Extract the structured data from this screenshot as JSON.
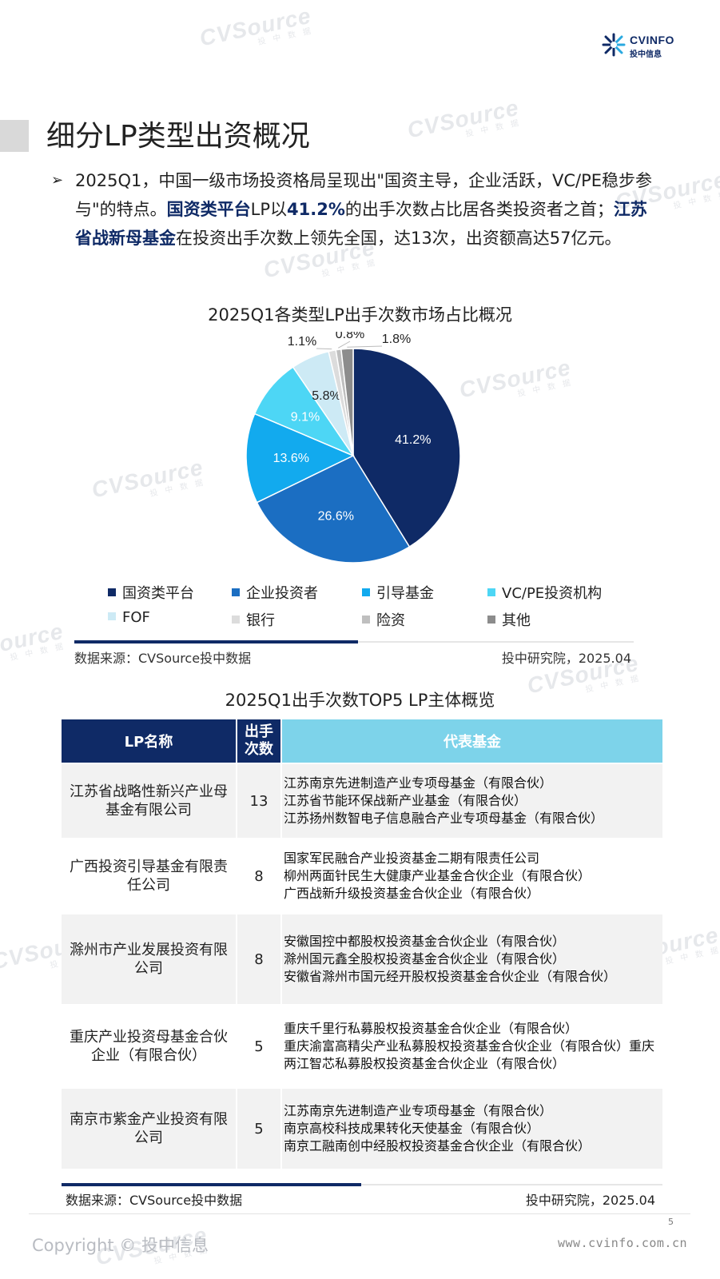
{
  "logo": {
    "text1": "CVINFO",
    "text2": "投中信息"
  },
  "watermark": {
    "brand": "CVSource",
    "sub": "投 中 数 据"
  },
  "page_title": "细分LP类型出资概况",
  "intro": {
    "bullet": "➢",
    "p1": "2025Q1，中国一级市场投资格局呈现出\"国资主导，企业活跃，VC/PE稳步参与\"的特点。",
    "hl1": "国资类平台",
    "p2": "LP以",
    "hl2": "41.2%",
    "p3": "的出手次数占比居各类投资者之首；",
    "hl3": "江苏省战新母基金",
    "p4": "在投资出手次数上领先全国，达13次，出资额高达57亿元。"
  },
  "chart_data": {
    "type": "pie",
    "title": "2025Q1各类型LP出手次数市场占比概况",
    "unit": "%",
    "slices": [
      {
        "label": "国资类平台",
        "value": 41.2,
        "display": "41.2%",
        "color": "#0f2a66"
      },
      {
        "label": "企业投资者",
        "value": 26.6,
        "display": "26.6%",
        "color": "#1b6ec2"
      },
      {
        "label": "引导基金",
        "value": 13.6,
        "display": "13.6%",
        "color": "#12aaee"
      },
      {
        "label": "VC/PE投资机构",
        "value": 9.1,
        "display": "9.1%",
        "color": "#4dd6f5"
      },
      {
        "label": "FOF",
        "value": 5.8,
        "display": "5.8%",
        "color": "#cdeaf5"
      },
      {
        "label": "银行",
        "value": 1.1,
        "display": "1.1%",
        "color": "#dcdcdc"
      },
      {
        "label": "险资",
        "value": 0.8,
        "display": "0.8%",
        "color": "#bfbfbf"
      },
      {
        "label": "其他",
        "value": 1.8,
        "display": "1.8%",
        "color": "#8c8c8c"
      }
    ],
    "legend_placement": "bottom"
  },
  "source1": {
    "left": "数据来源：CVSource投中数据",
    "right": "投中研究院，2025.04"
  },
  "table": {
    "title": "2025Q1出手次数TOP5 LP主体概览",
    "headers": {
      "name": "LP名称",
      "count_line1": "出手",
      "count_line2": "次数",
      "funds": "代表基金"
    },
    "rows": [
      {
        "name": "江苏省战略性新兴产业母基金有限公司",
        "count": "13",
        "funds": [
          "江苏南京先进制造产业专项母基金（有限合伙）",
          "江苏省节能环保战新产业基金（有限合伙）",
          "江苏扬州数智电子信息融合产业专项母基金（有限合伙）"
        ]
      },
      {
        "name": "广西投资引导基金有限责任公司",
        "count": "8",
        "funds": [
          "国家军民融合产业投资基金二期有限责任公司",
          "柳州两面针民生大健康产业基金合伙企业（有限合伙）",
          "广西战新升级投资基金合伙企业（有限合伙）"
        ]
      },
      {
        "name": "滁州市产业发展投资有限公司",
        "count": "8",
        "funds": [
          "安徽国控中都股权投资基金合伙企业（有限合伙）",
          "滁州国元鑫全股权投资基金合伙企业（有限合伙）",
          "安徽省滁州市国元经开股权投资基金合伙企业（有限合伙）"
        ]
      },
      {
        "name": "重庆产业投资母基金合伙企业（有限合伙）",
        "count": "5",
        "funds": [
          "重庆千里行私募股权投资基金合伙企业（有限合伙）",
          "重庆渝富高精尖产业私募股权投资基金合伙企业（有限合伙）重庆两江智芯私募股权投资基金合伙企业（有限合伙）"
        ]
      },
      {
        "name": "南京市紫金产业投资有限公司",
        "count": "5",
        "funds": [
          "江苏南京先进制造产业专项母基金（有限合伙）",
          "南京高校科技成果转化天使基金（有限合伙）",
          "南京工融南创中经股权投资基金合伙企业（有限合伙）"
        ]
      }
    ]
  },
  "source2": {
    "left": "数据来源：CVSource投中数据",
    "right": "投中研究院，2025.04"
  },
  "footer": {
    "page": "5",
    "copyright": "Copyright © 投中信息",
    "site": "www.cvinfo.com.cn"
  }
}
